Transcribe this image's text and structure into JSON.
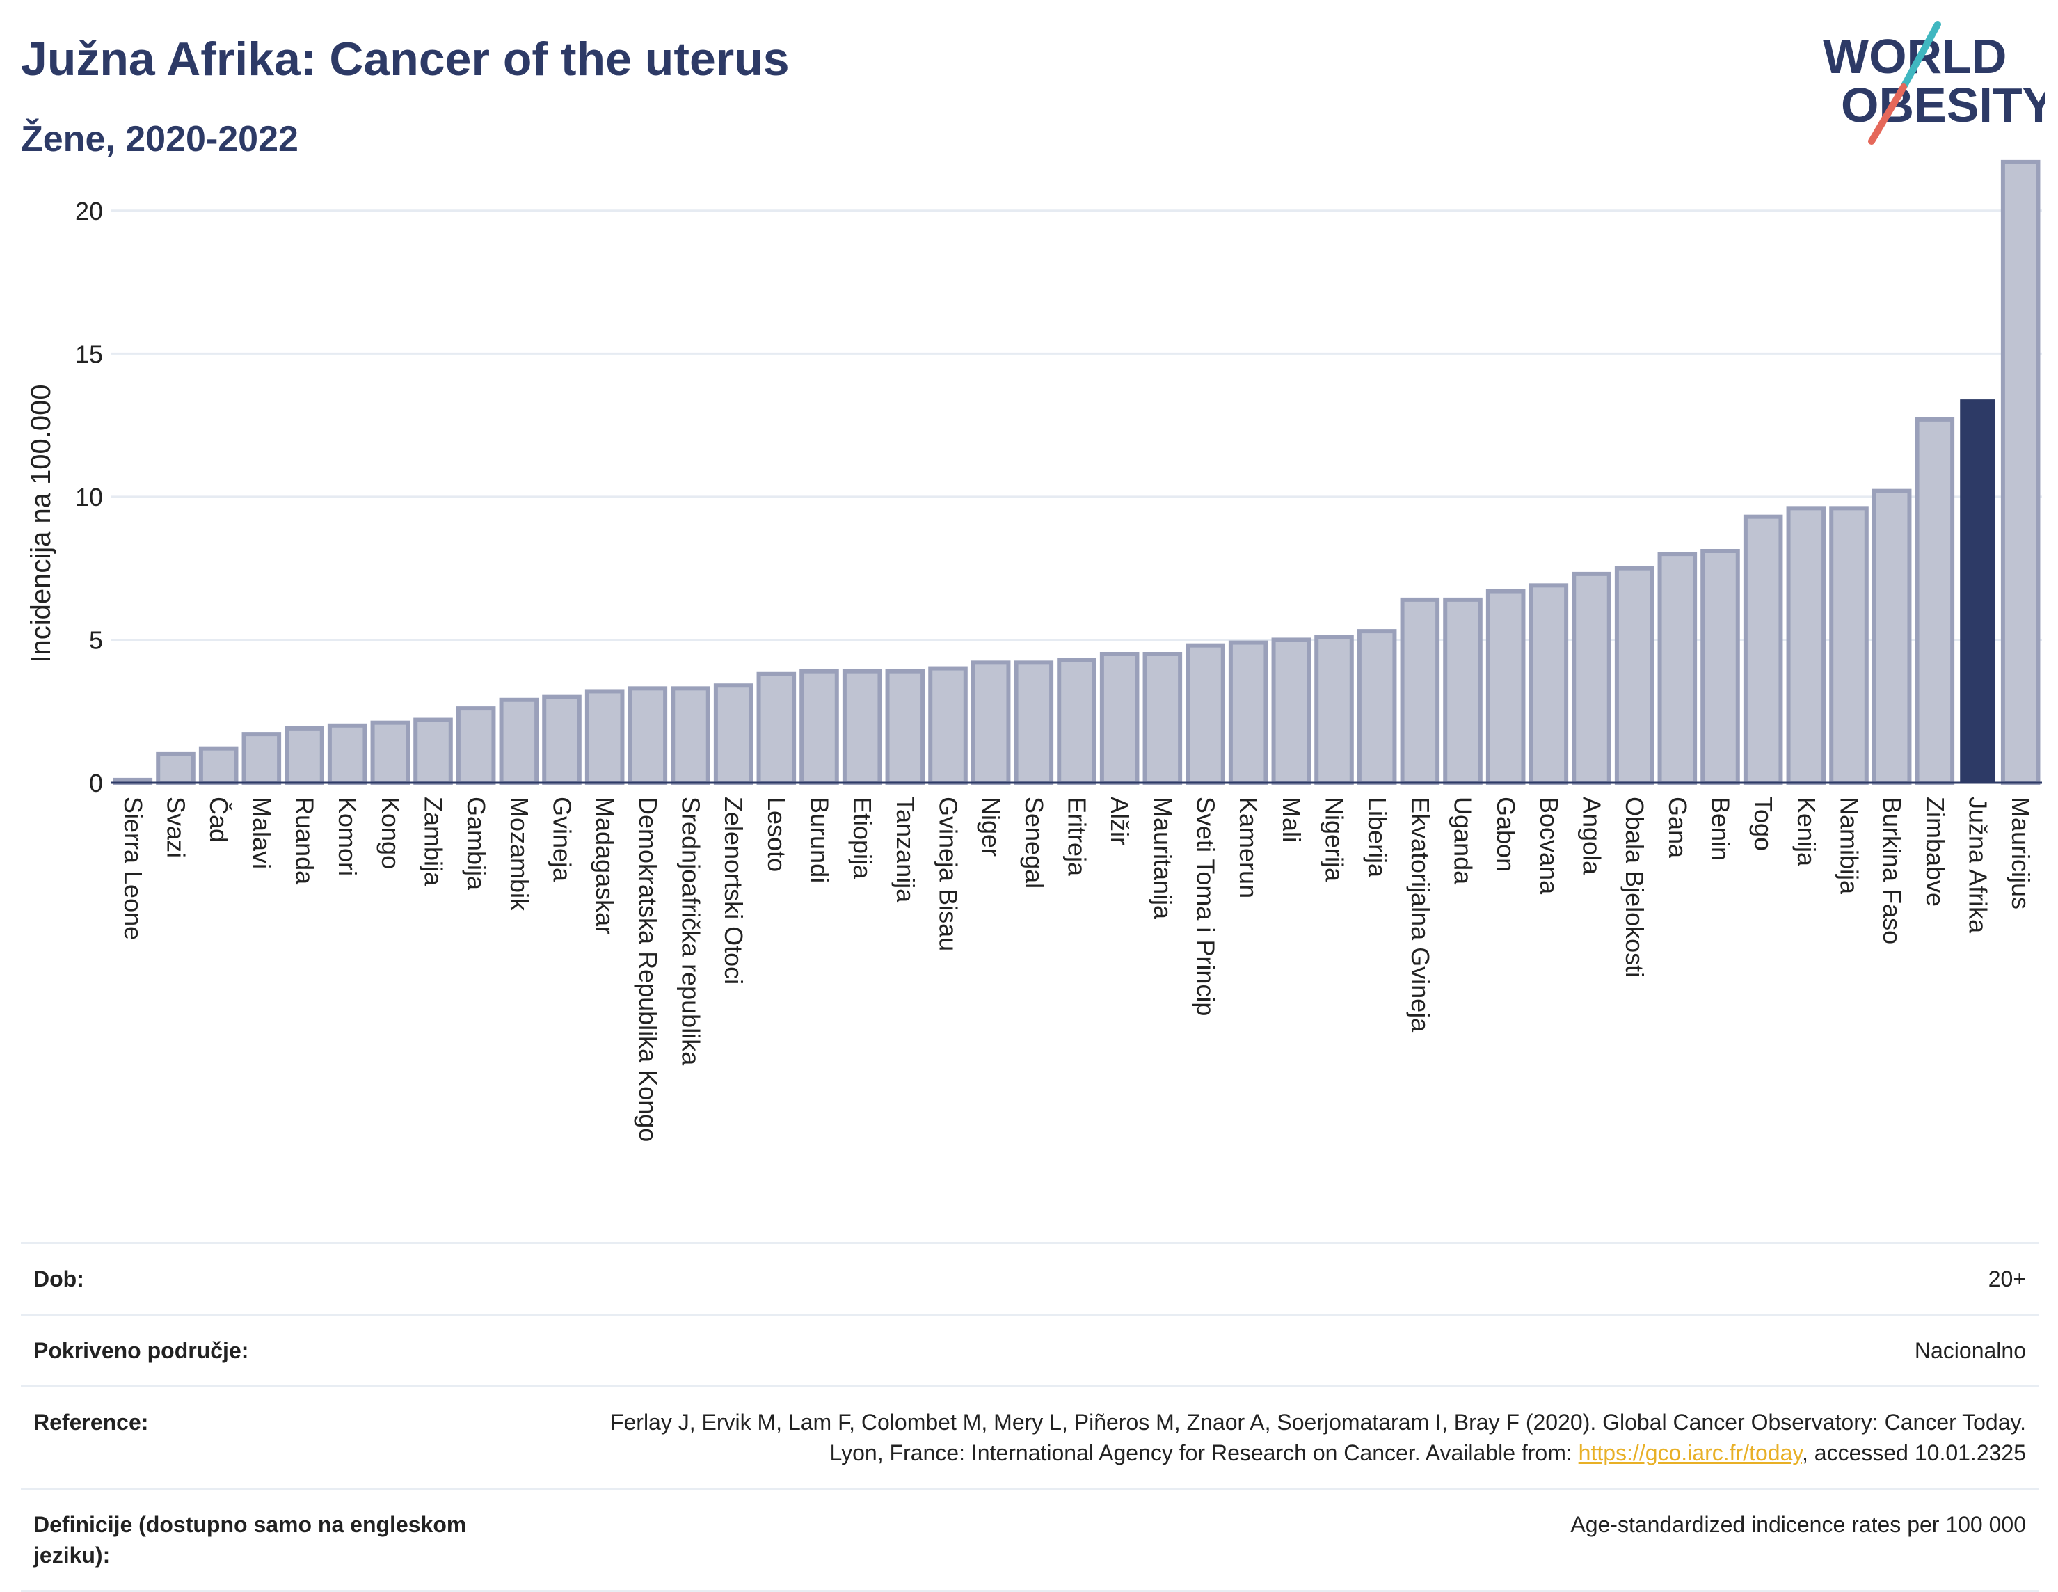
{
  "header": {
    "title": "Južna Afrika: Cancer of the uterus",
    "subtitle": "Žene, 2020-2022"
  },
  "logo": {
    "line1": "WORLD",
    "line2": "OBESITY"
  },
  "chart_data": {
    "type": "bar",
    "ylabel": "Incidencija na 100.000",
    "ylim": [
      0,
      22.5
    ],
    "yticks": [
      0,
      5,
      10,
      15,
      20
    ],
    "grid": true,
    "highlight": "Južna Afrika",
    "colors": {
      "bar": "#bfc3d2",
      "bar_border": "#9aa0ba",
      "highlight": "#2d3a66",
      "grid": "#e6ebf2"
    },
    "categories": [
      "Sierra Leone",
      "Svazi",
      "Čad",
      "Malavi",
      "Ruanda",
      "Komori",
      "Kongo",
      "Zambija",
      "Gambija",
      "Mozambik",
      "Gvineja",
      "Madagaskar",
      "Demokratska Republika Kongo",
      "Srednjoafrička republika",
      "Zelenortski Otoci",
      "Lesoto",
      "Burundi",
      "Etiopija",
      "Tanzanija",
      "Gvineja Bisau",
      "Niger",
      "Senegal",
      "Eritreja",
      "Alžir",
      "Mauritanija",
      "Sveti Toma i Princip",
      "Kamerun",
      "Mali",
      "Nigerija",
      "Liberija",
      "Ekvatorijalna Gvineja",
      "Uganda",
      "Gabon",
      "Bocvana",
      "Angola",
      "Obala Bjelokosti",
      "Gana",
      "Benin",
      "Togo",
      "Kenija",
      "Namibija",
      "Burkina Faso",
      "Zimbabve",
      "Južna Afrika",
      "Mauricijus"
    ],
    "values": [
      0.1,
      1.0,
      1.2,
      1.7,
      1.9,
      2.0,
      2.1,
      2.2,
      2.6,
      2.9,
      3.0,
      3.2,
      3.3,
      3.3,
      3.4,
      3.8,
      3.9,
      3.9,
      3.9,
      4.0,
      4.2,
      4.2,
      4.3,
      4.5,
      4.5,
      4.8,
      4.9,
      5.0,
      5.1,
      5.3,
      6.4,
      6.4,
      6.7,
      6.9,
      7.3,
      7.5,
      8.0,
      8.1,
      9.3,
      9.6,
      9.6,
      10.2,
      12.7,
      13.4,
      21.7
    ]
  },
  "meta": {
    "age_label": "Dob:",
    "age_value": "20+",
    "area_label": "Pokriveno područje:",
    "area_value": "Nacionalno",
    "ref_label": "Reference:",
    "ref_text": "Ferlay J, Ervik M, Lam F, Colombet M, Mery L, Piñeros M, Znaor A, Soerjomataram I, Bray F (2020). Global Cancer Observatory: Cancer Today. Lyon, France: International Agency for Research on Cancer. Available from: ",
    "ref_link": "https://gco.iarc.fr/today",
    "ref_tail": ", accessed 10.01.2325",
    "def_label": "Definicije (dostupno samo na engleskom jeziku):",
    "def_value": "Age-standardized indicence rates per 100 000"
  }
}
